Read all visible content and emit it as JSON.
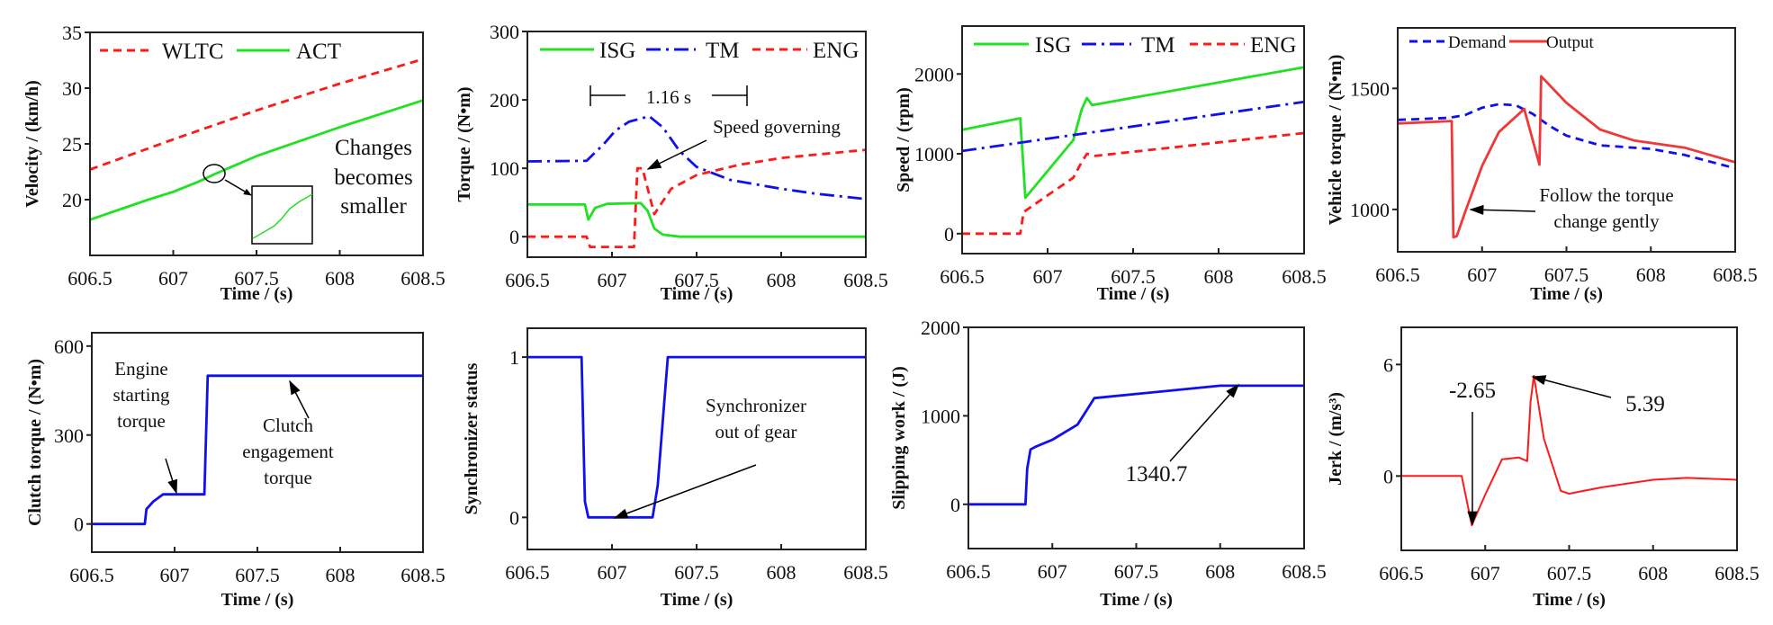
{
  "colors": {
    "red": "#ff1a1a",
    "green": "#22e022",
    "blue": "#1010ee",
    "output_red": "#f03838"
  },
  "chart_data": [
    {
      "type": "line",
      "id": "velocity",
      "xlabel": "Time / (s)",
      "ylabel": "Velocity / (km/h)",
      "xlim": [
        606.5,
        608.5
      ],
      "ylim": [
        15,
        35
      ],
      "xticks": [
        606.5,
        607,
        607.5,
        608,
        608.5
      ],
      "xtick_labels": [
        "606.5",
        "607",
        "607.5",
        "608",
        "608.5"
      ],
      "yticks": [
        20,
        25,
        30,
        35
      ],
      "ytick_labels": [
        "20",
        "25",
        "30",
        "35"
      ],
      "legend": "top-left",
      "series": [
        {
          "name": "WLTC",
          "color": "#ff1a1a",
          "style": "dashed",
          "points": [
            [
              606.5,
              22.7
            ],
            [
              607,
              25.4
            ],
            [
              607.5,
              28.0
            ],
            [
              608,
              30.4
            ],
            [
              608.5,
              32.6
            ]
          ]
        },
        {
          "name": "ACT",
          "color": "#22e022",
          "style": "solid",
          "points": [
            [
              606.5,
              18.2
            ],
            [
              606.85,
              20.0
            ],
            [
              607,
              20.7
            ],
            [
              607.15,
              21.6
            ],
            [
              607.25,
              22.3
            ],
            [
              607.5,
              23.9
            ],
            [
              608,
              26.5
            ],
            [
              608.5,
              28.9
            ]
          ]
        }
      ],
      "annotations": [
        "Changes",
        "becomes",
        "smaller"
      ]
    },
    {
      "type": "line",
      "id": "torque",
      "xlabel": "Time / (s)",
      "ylabel": "Torque / (N•m)",
      "xlim": [
        606.5,
        608.5
      ],
      "ylim": [
        -30,
        300
      ],
      "xticks": [
        606.5,
        607,
        607.5,
        608,
        608.5
      ],
      "xtick_labels": [
        "606.5",
        "607",
        "607.5",
        "608",
        "608.5"
      ],
      "yticks": [
        0,
        100,
        200,
        300
      ],
      "ytick_labels": [
        "0",
        "100",
        "200",
        "300"
      ],
      "legend": "top",
      "series": [
        {
          "name": "ISG",
          "color": "#22e022",
          "style": "solid",
          "points": [
            [
              606.5,
              47
            ],
            [
              606.84,
              47
            ],
            [
              606.86,
              25
            ],
            [
              606.9,
              42
            ],
            [
              606.97,
              48
            ],
            [
              607.17,
              49
            ],
            [
              607.21,
              38
            ],
            [
              607.25,
              12
            ],
            [
              607.3,
              3
            ],
            [
              607.4,
              0
            ],
            [
              608.5,
              0
            ]
          ]
        },
        {
          "name": "TM",
          "color": "#1010ee",
          "style": "dashdot",
          "points": [
            [
              606.5,
              110
            ],
            [
              606.85,
              111
            ],
            [
              606.95,
              135
            ],
            [
              607.02,
              155
            ],
            [
              607.1,
              168
            ],
            [
              607.22,
              176
            ],
            [
              607.3,
              160
            ],
            [
              607.4,
              125
            ],
            [
              607.5,
              102
            ],
            [
              607.7,
              83
            ],
            [
              608,
              70
            ],
            [
              608.2,
              63
            ],
            [
              608.5,
              55
            ]
          ]
        },
        {
          "name": "ENG",
          "color": "#ff1a1a",
          "style": "dashed",
          "points": [
            [
              606.5,
              0
            ],
            [
              606.85,
              0
            ],
            [
              606.87,
              -15
            ],
            [
              607.13,
              -15
            ],
            [
              607.15,
              100
            ],
            [
              607.18,
              100
            ],
            [
              607.25,
              33
            ],
            [
              607.35,
              70
            ],
            [
              607.5,
              90
            ],
            [
              607.75,
              105
            ],
            [
              608,
              115
            ],
            [
              608.5,
              127
            ]
          ]
        }
      ],
      "annotations": [
        "1.16 s",
        "Speed governing"
      ]
    },
    {
      "type": "line",
      "id": "speed",
      "xlabel": "Time / (s)",
      "ylabel": "Speed / (rpm)",
      "xlim": [
        606.5,
        608.5
      ],
      "ylim": [
        -250,
        2600
      ],
      "xticks": [
        606.5,
        607,
        607.5,
        608,
        608.5
      ],
      "xtick_labels": [
        "606.5",
        "607",
        "607.5",
        "608",
        "608.5"
      ],
      "yticks": [
        0,
        1000,
        2000
      ],
      "ytick_labels": [
        "0",
        "1000",
        "2000"
      ],
      "legend": "top",
      "series": [
        {
          "name": "ISG",
          "color": "#22e022",
          "style": "solid",
          "points": [
            [
              606.5,
              1300
            ],
            [
              606.84,
              1445
            ],
            [
              606.87,
              450
            ],
            [
              607.15,
              1170
            ],
            [
              607.2,
              1560
            ],
            [
              607.23,
              1700
            ],
            [
              607.26,
              1610
            ],
            [
              608.5,
              2085
            ]
          ]
        },
        {
          "name": "TM",
          "color": "#1010ee",
          "style": "dashdot",
          "points": [
            [
              606.5,
              1035
            ],
            [
              608.5,
              1650
            ]
          ]
        },
        {
          "name": "ENG",
          "color": "#ff1a1a",
          "style": "dashed",
          "points": [
            [
              606.5,
              0
            ],
            [
              606.84,
              0
            ],
            [
              606.86,
              270
            ],
            [
              607.0,
              480
            ],
            [
              607.15,
              700
            ],
            [
              607.2,
              900
            ],
            [
              607.23,
              1000
            ],
            [
              607.28,
              975
            ],
            [
              608.5,
              1260
            ]
          ]
        }
      ],
      "annotations": []
    },
    {
      "type": "line",
      "id": "vehicle-torque",
      "xlabel": "Time / (s)",
      "ylabel": "Vehicle torque / (N•m)",
      "xlim": [
        606.5,
        608.5
      ],
      "ylim": [
        825,
        1750
      ],
      "xticks": [
        606.5,
        607,
        607.5,
        608,
        608.5
      ],
      "xtick_labels": [
        "606.5",
        "607",
        "607.5",
        "608",
        "608.5"
      ],
      "yticks": [
        1000,
        1500
      ],
      "ytick_labels": [
        "1000",
        "1500"
      ],
      "legend": "top-left",
      "series": [
        {
          "name": "Demand",
          "color": "#1010ee",
          "style": "dashed",
          "points": [
            [
              606.5,
              1370
            ],
            [
              606.8,
              1378
            ],
            [
              606.9,
              1390
            ],
            [
              607.0,
              1420
            ],
            [
              607.1,
              1435
            ],
            [
              607.2,
              1430
            ],
            [
              607.3,
              1395
            ],
            [
              607.4,
              1345
            ],
            [
              607.5,
              1305
            ],
            [
              607.7,
              1265
            ],
            [
              608,
              1250
            ],
            [
              608.2,
              1225
            ],
            [
              608.5,
              1170
            ]
          ]
        },
        {
          "name": "Output",
          "color": "#f03838",
          "style": "solid",
          "points": [
            [
              606.5,
              1355
            ],
            [
              606.82,
              1365
            ],
            [
              606.83,
              885
            ],
            [
              606.85,
              890
            ],
            [
              606.9,
              990
            ],
            [
              607.0,
              1180
            ],
            [
              607.1,
              1320
            ],
            [
              607.25,
              1415
            ],
            [
              607.34,
              1185
            ],
            [
              607.35,
              1550
            ],
            [
              607.5,
              1440
            ],
            [
              607.7,
              1330
            ],
            [
              607.9,
              1285
            ],
            [
              608.2,
              1255
            ],
            [
              608.5,
              1195
            ]
          ]
        }
      ],
      "annotations": [
        "Follow the torque",
        "change gently"
      ]
    },
    {
      "type": "line",
      "id": "clutch-torque",
      "xlabel": "Time / (s)",
      "ylabel": "Clutch torque / (N•m)",
      "xlim": [
        606.5,
        608.5
      ],
      "ylim": [
        -95,
        645
      ],
      "xticks": [
        606.5,
        607,
        607.5,
        608,
        608.5
      ],
      "xtick_labels": [
        "606.5",
        "607",
        "607.5",
        "608",
        "608.5"
      ],
      "yticks": [
        0,
        300,
        600
      ],
      "ytick_labels": [
        "0",
        "300",
        "600"
      ],
      "series": [
        {
          "name": "Clutch torque",
          "color": "#1010ee",
          "style": "solid",
          "points": [
            [
              606.5,
              0
            ],
            [
              606.82,
              0
            ],
            [
              606.83,
              50
            ],
            [
              606.87,
              75
            ],
            [
              606.93,
              100
            ],
            [
              607.18,
              100
            ],
            [
              607.2,
              500
            ],
            [
              608.5,
              500
            ]
          ]
        }
      ],
      "annotations": [
        "Engine",
        "starting",
        "torque",
        "Clutch",
        "engagement",
        "torque"
      ]
    },
    {
      "type": "line",
      "id": "synchronizer",
      "xlabel": "Time / (s)",
      "ylabel": "Synchronizer status",
      "xlim": [
        606.5,
        608.5
      ],
      "ylim": [
        -0.2,
        1.18
      ],
      "xticks": [
        606.5,
        607,
        607.5,
        608,
        608.5
      ],
      "xtick_labels": [
        "606.5",
        "607",
        "607.5",
        "608",
        "608.5"
      ],
      "yticks": [
        0,
        1
      ],
      "ytick_labels": [
        "0",
        "1"
      ],
      "series": [
        {
          "name": "Synchronizer status",
          "color": "#1010ee",
          "style": "solid",
          "points": [
            [
              606.5,
              1
            ],
            [
              606.82,
              1
            ],
            [
              606.84,
              0.1
            ],
            [
              606.86,
              0
            ],
            [
              607.24,
              0
            ],
            [
              607.27,
              0.2
            ],
            [
              607.33,
              1
            ],
            [
              608.5,
              1
            ]
          ]
        }
      ],
      "annotations": [
        "Synchronizer",
        "out of gear"
      ]
    },
    {
      "type": "line",
      "id": "slipping-work",
      "xlabel": "Time / (s)",
      "ylabel": "Slipping work / (J)",
      "xlim": [
        606.5,
        608.5
      ],
      "ylim": [
        -500,
        2000
      ],
      "xticks": [
        606.5,
        607,
        607.5,
        608,
        608.5
      ],
      "xtick_labels": [
        "606.5",
        "607",
        "607.5",
        "608",
        "608.5"
      ],
      "yticks": [
        0,
        1000,
        2000
      ],
      "ytick_labels": [
        "0",
        "1000",
        "2000"
      ],
      "series": [
        {
          "name": "Slipping work",
          "color": "#1010ee",
          "style": "solid",
          "points": [
            [
              606.5,
              0
            ],
            [
              606.84,
              0
            ],
            [
              606.85,
              400
            ],
            [
              606.87,
              620
            ],
            [
              606.9,
              650
            ],
            [
              607.0,
              730
            ],
            [
              607.15,
              900
            ],
            [
              607.2,
              1050
            ],
            [
              607.25,
              1200
            ],
            [
              608.0,
              1340
            ],
            [
              608.5,
              1340.7
            ]
          ]
        }
      ],
      "annotations": [
        "1340.7"
      ]
    },
    {
      "type": "line",
      "id": "jerk",
      "xlabel": "Time / (s)",
      "ylabel": "Jerk / (m/s³)",
      "xlim": [
        606.5,
        608.5
      ],
      "ylim": [
        -4,
        8
      ],
      "xticks": [
        606.5,
        607,
        607.5,
        608,
        608.5
      ],
      "xtick_labels": [
        "606.5",
        "607",
        "607.5",
        "608",
        "608.5"
      ],
      "yticks": [
        0,
        6
      ],
      "ytick_labels": [
        "0",
        "6"
      ],
      "series": [
        {
          "name": "Jerk",
          "color": "#ff1a1a",
          "style": "solid",
          "points": [
            [
              606.5,
              0
            ],
            [
              606.86,
              0
            ],
            [
              606.92,
              -2.65
            ],
            [
              607.0,
              -1
            ],
            [
              607.1,
              0.9
            ],
            [
              607.2,
              1.0
            ],
            [
              607.25,
              0.8
            ],
            [
              607.27,
              4
            ],
            [
              607.29,
              5.39
            ],
            [
              607.35,
              2
            ],
            [
              607.45,
              -0.8
            ],
            [
              607.5,
              -0.95
            ],
            [
              607.7,
              -0.6
            ],
            [
              608,
              -0.2
            ],
            [
              608.2,
              -0.1
            ],
            [
              608.5,
              -0.2
            ]
          ]
        }
      ],
      "annotations": [
        "-2.65",
        "5.39"
      ]
    }
  ]
}
